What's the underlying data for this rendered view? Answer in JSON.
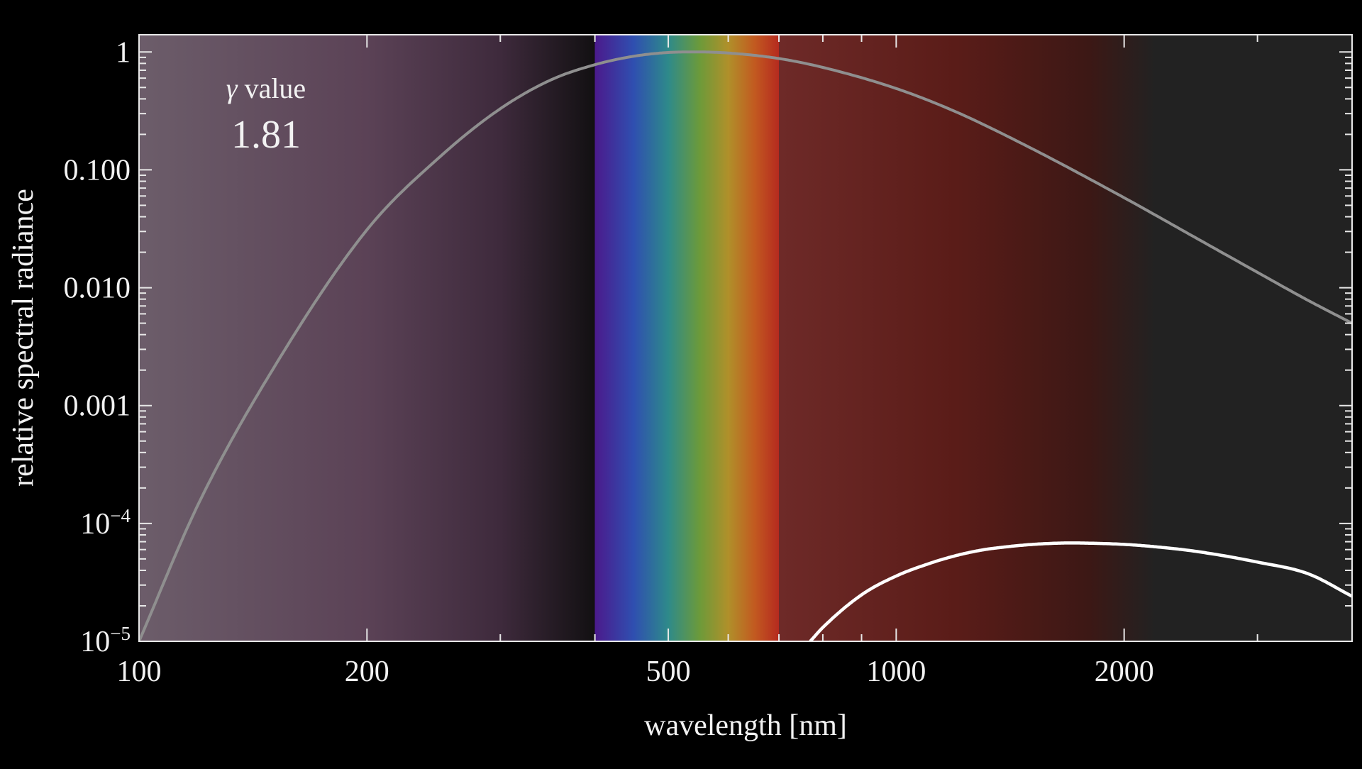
{
  "chart_data": {
    "type": "line",
    "xscale": "log",
    "yscale": "log",
    "xlim": [
      100,
      4000
    ],
    "ylim": [
      1e-05,
      1.4
    ],
    "xlabel": "wavelength [nm]",
    "ylabel": "relative spectral radiance",
    "x_ticks": [
      {
        "value": 100,
        "label": "100"
      },
      {
        "value": 200,
        "label": "200"
      },
      {
        "value": 500,
        "label": "500"
      },
      {
        "value": 1000,
        "label": "1000"
      },
      {
        "value": 2000,
        "label": "2000"
      }
    ],
    "y_ticks": [
      {
        "value": 1,
        "label": "1"
      },
      {
        "value": 0.1,
        "label": "0.100"
      },
      {
        "value": 0.01,
        "label": "0.010"
      },
      {
        "value": 0.001,
        "label": "0.001"
      },
      {
        "value": 0.0001,
        "label": "10",
        "exp": "−4"
      },
      {
        "value": 1e-05,
        "label": "10",
        "exp": "−5"
      }
    ],
    "annotation": {
      "label_symbol": "γ",
      "label_text": " value",
      "value": "1.81"
    },
    "visible_band_nm": [
      400,
      700
    ],
    "background_bands": [
      {
        "x": 100,
        "color": "#6c5d6a"
      },
      {
        "x": 200,
        "color": "#5b4256"
      },
      {
        "x": 300,
        "color": "#3e2a3c"
      },
      {
        "x": 400,
        "color": "#121012"
      },
      {
        "x": 400,
        "color": "#4b1a8c"
      },
      {
        "x": 450,
        "color": "#2f4fb0"
      },
      {
        "x": 500,
        "color": "#2e8a8a"
      },
      {
        "x": 550,
        "color": "#6c9a3a"
      },
      {
        "x": 600,
        "color": "#b0902a"
      },
      {
        "x": 650,
        "color": "#c25a20"
      },
      {
        "x": 700,
        "color": "#b52a1f"
      },
      {
        "x": 700,
        "color": "#6e2a28"
      },
      {
        "x": 1200,
        "color": "#5a1c18"
      },
      {
        "x": 1800,
        "color": "#3c1815"
      },
      {
        "x": 2200,
        "color": "#222222"
      },
      {
        "x": 4000,
        "color": "#222222"
      }
    ],
    "series": [
      {
        "color": "#8f8f8f",
        "x": [
          100,
          120,
          150,
          200,
          250,
          300,
          350,
          400,
          450,
          500,
          550,
          600,
          700,
          800,
          1000,
          1200,
          1500,
          2000,
          2500,
          3000,
          3500,
          4000
        ],
        "y": [
          1e-05,
          0.00015,
          0.002,
          0.031,
          0.13,
          0.33,
          0.58,
          0.78,
          0.92,
          0.99,
          1.0,
          0.98,
          0.88,
          0.74,
          0.49,
          0.31,
          0.155,
          0.058,
          0.026,
          0.0135,
          0.0078,
          0.005
        ]
      },
      {
        "color": "#ffffff",
        "x": [
          770,
          800,
          900,
          1000,
          1100,
          1200,
          1300,
          1400,
          1500,
          1600,
          1700,
          1800,
          2000,
          2200,
          2500,
          3000,
          3500,
          4000
        ],
        "y": [
          1e-05,
          1.31e-05,
          2.48e-05,
          3.58e-05,
          4.52e-05,
          5.34e-05,
          5.96e-05,
          6.34e-05,
          6.61e-05,
          6.77e-05,
          6.83e-05,
          6.8e-05,
          6.64e-05,
          6.34e-05,
          5.77e-05,
          4.7e-05,
          3.74e-05,
          2.41e-05
        ]
      }
    ]
  }
}
